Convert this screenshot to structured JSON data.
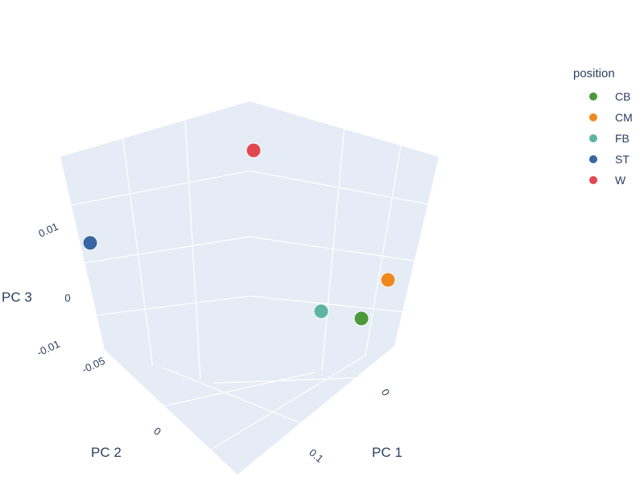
{
  "chart_data": {
    "type": "scatter",
    "axes": {
      "x": {
        "label": "PC 1",
        "ticks": [
          "0",
          "0.1"
        ]
      },
      "y": {
        "label": "PC 2",
        "ticks": [
          "-0.05",
          "0"
        ]
      },
      "z": {
        "label": "PC 3",
        "ticks": [
          "-0.01",
          "0",
          "0.01"
        ]
      }
    },
    "legend": {
      "title": "position",
      "placement": "right"
    },
    "series": [
      {
        "name": "CB",
        "color": "#4a9a3c"
      },
      {
        "name": "CM",
        "color": "#f0871f"
      },
      {
        "name": "FB",
        "color": "#5cb5a0"
      },
      {
        "name": "ST",
        "color": "#3a66a3"
      },
      {
        "name": "W",
        "color": "#e2464f"
      }
    ],
    "background": "#e5ecf6",
    "grid": true
  }
}
